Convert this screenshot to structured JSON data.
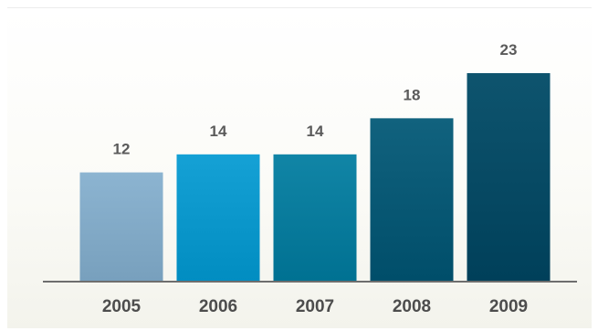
{
  "chart_data": {
    "type": "bar",
    "categories": [
      "2005",
      "2006",
      "2007",
      "2008",
      "2009"
    ],
    "values": [
      12,
      14,
      14,
      18,
      23
    ],
    "title": "",
    "xlabel": "",
    "ylabel": "",
    "ylim": [
      0,
      23
    ],
    "grid": false,
    "legend": "none",
    "data_labels": [
      "12",
      "14",
      "14",
      "18",
      "23"
    ],
    "colors": [
      "#86aecb",
      "#0f9bcf",
      "#0b7fa0",
      "#0b5c78",
      "#084e68"
    ],
    "axis_color": "#6e6e6e"
  }
}
